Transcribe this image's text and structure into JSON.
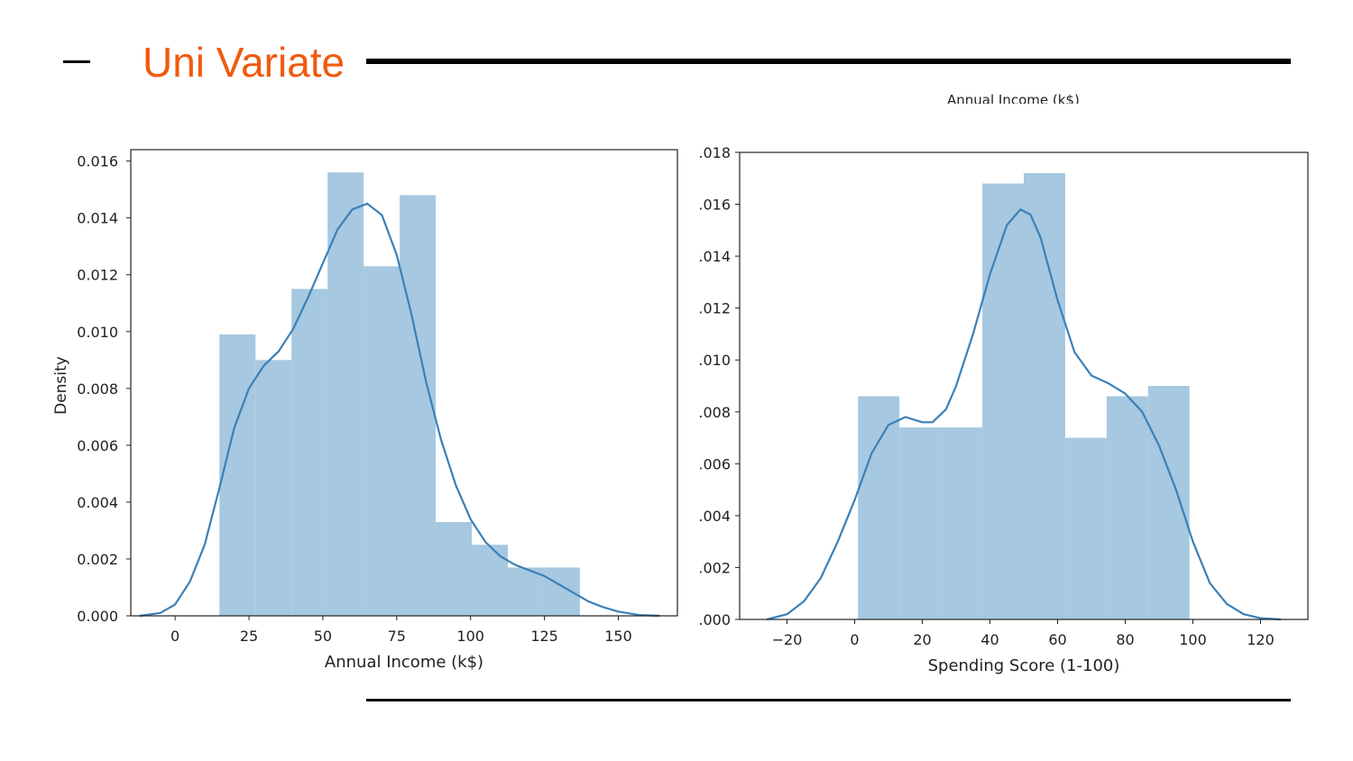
{
  "slide": {
    "title": "Uni Variate",
    "clipped_label": "Annual Income (k$)"
  },
  "colors": {
    "title": "#f05a0e",
    "bar": "#a6c8e0",
    "kde": "#3a80b8"
  },
  "chart_data": [
    {
      "type": "bar",
      "subtype": "histogram+kde",
      "xlabel": "Annual Income (k$)",
      "ylabel": "Density",
      "xlim": [
        -15,
        170
      ],
      "ylim": [
        0,
        0.0164
      ],
      "xticks": [
        0,
        25,
        50,
        75,
        100,
        125,
        150
      ],
      "xtick_labels": [
        "0",
        "25",
        "50",
        "75",
        "100",
        "125",
        "150"
      ],
      "yticks": [
        0,
        0.002,
        0.004,
        0.006,
        0.008,
        0.01,
        0.012,
        0.014,
        0.016
      ],
      "ytick_labels": [
        "0.000",
        "0.002",
        "0.004",
        "0.006",
        "0.008",
        "0.010",
        "0.012",
        "0.014",
        "0.016"
      ],
      "bin_edges": [
        15,
        27.2,
        39.4,
        51.6,
        63.8,
        76,
        88.2,
        100.4,
        112.6,
        124.8,
        137
      ],
      "values": [
        0.0099,
        0.009,
        0.0115,
        0.0156,
        0.0123,
        0.0148,
        0.0033,
        0.0025,
        0.0017,
        0.0017
      ],
      "kde": {
        "x": [
          -12,
          -5,
          0,
          5,
          10,
          15,
          20,
          25,
          30,
          35,
          40,
          45,
          50,
          55,
          60,
          65,
          70,
          75,
          80,
          85,
          90,
          95,
          100,
          105,
          110,
          115,
          120,
          125,
          130,
          135,
          140,
          145,
          150,
          157,
          164
        ],
        "y": [
          0,
          0.0001,
          0.0004,
          0.0012,
          0.0025,
          0.0045,
          0.0066,
          0.008,
          0.0088,
          0.0093,
          0.0101,
          0.0112,
          0.0124,
          0.0136,
          0.0143,
          0.0145,
          0.0141,
          0.0127,
          0.0106,
          0.0082,
          0.0062,
          0.0046,
          0.0034,
          0.0026,
          0.0021,
          0.0018,
          0.0016,
          0.0014,
          0.0011,
          0.0008,
          0.0005,
          0.0003,
          0.00015,
          3e-05,
          0
        ]
      },
      "grid": false
    },
    {
      "type": "bar",
      "subtype": "histogram+kde",
      "xlabel": "Spending Score (1-100)",
      "ylabel": "",
      "xlim": [
        -34,
        134
      ],
      "ylim": [
        0,
        0.018
      ],
      "xticks": [
        -20,
        0,
        20,
        40,
        60,
        80,
        100,
        120
      ],
      "xtick_labels": [
        "−20",
        "0",
        "20",
        "40",
        "60",
        "80",
        "100",
        "120"
      ],
      "yticks": [
        0,
        0.002,
        0.004,
        0.006,
        0.008,
        0.01,
        0.012,
        0.014,
        0.016,
        0.018
      ],
      "ytick_labels": [
        ".000",
        ".002",
        ".004",
        ".006",
        ".008",
        ".010",
        ".012",
        ".014",
        ".016",
        ".018"
      ],
      "bin_edges": [
        1,
        13.25,
        25.5,
        37.75,
        50,
        62.25,
        74.5,
        86.75,
        99
      ],
      "values": [
        0.0086,
        0.0074,
        0.0074,
        0.0168,
        0.0172,
        0.007,
        0.0086,
        0.009
      ],
      "kde": {
        "x": [
          -26,
          -20,
          -15,
          -10,
          -5,
          0,
          5,
          10,
          15,
          20,
          23,
          27,
          30,
          35,
          40,
          45,
          49,
          52,
          55,
          60,
          65,
          70,
          75,
          80,
          85,
          90,
          95,
          100,
          105,
          110,
          115,
          120,
          126
        ],
        "y": [
          0,
          0.0002,
          0.0007,
          0.0016,
          0.003,
          0.0046,
          0.0064,
          0.0075,
          0.0078,
          0.0076,
          0.0076,
          0.0081,
          0.009,
          0.011,
          0.0133,
          0.0152,
          0.0158,
          0.0156,
          0.0147,
          0.0123,
          0.0103,
          0.0094,
          0.0091,
          0.0087,
          0.008,
          0.0067,
          0.005,
          0.003,
          0.0014,
          0.0006,
          0.0002,
          5e-05,
          0
        ]
      },
      "grid": false
    }
  ]
}
